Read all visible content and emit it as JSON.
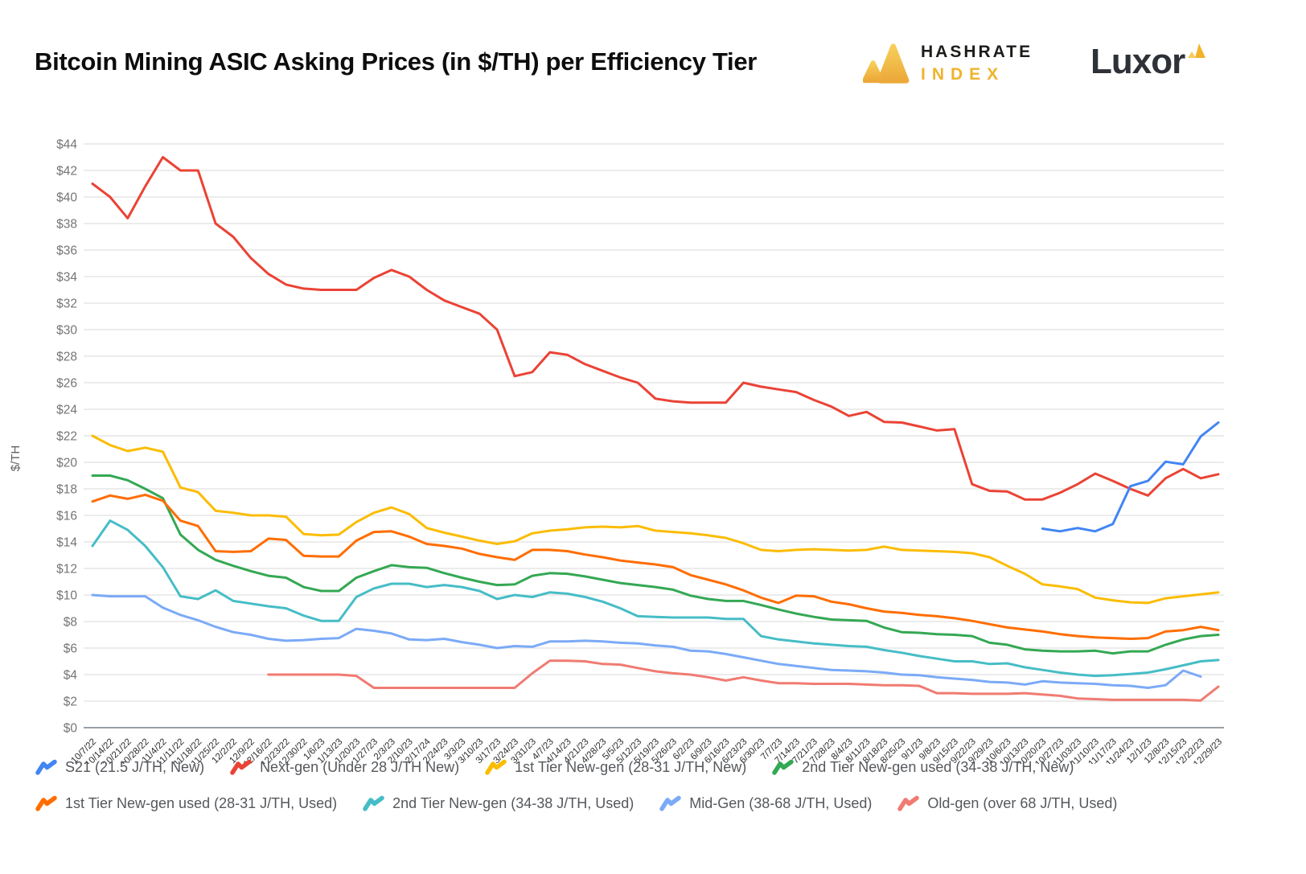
{
  "header": {
    "title": "Bitcoin Mining ASIC Asking Prices (in $/TH) per Efficiency Tier",
    "hashrate_logo": {
      "line1": "HASHRATE",
      "line2": "INDEX"
    },
    "luxor_logo": "Luxor"
  },
  "chart_data": {
    "type": "line",
    "title": "Bitcoin Mining ASIC Asking Prices (in $/TH) per Efficiency Tier",
    "xlabel": "",
    "ylabel": "$/TH",
    "ylim": [
      0,
      44
    ],
    "ytick_step": 2,
    "ytick_prefix": "$",
    "grid": true,
    "legend_position": "bottom",
    "x_label_rotation": -45,
    "x": [
      "10/7/22",
      "10/14/22",
      "10/21/22",
      "10/28/22",
      "11/4/22",
      "11/11/22",
      "11/18/22",
      "11/25/22",
      "12/2/22",
      "12/9/22",
      "12/16/22",
      "12/23/22",
      "12/30/22",
      "1/6/23",
      "1/13/23",
      "1/20/23",
      "1/27/23",
      "2/3/23",
      "2/10/23",
      "2/17/24",
      "2/24/23",
      "3/3/23",
      "3/10/23",
      "3/17/23",
      "3/24/23",
      "3/31/23",
      "4/7/23",
      "4/14/23",
      "4/21/23",
      "4/28/23",
      "5/5/23",
      "5/12/23",
      "5/19/23",
      "5/26/23",
      "6/2/23",
      "6/9/23",
      "6/16/23",
      "6/23/23",
      "6/30/23",
      "7/7/23",
      "7/14/23",
      "7/21/23",
      "7/28/23",
      "8/4/23",
      "8/11/23",
      "8/18/23",
      "8/25/23",
      "9/1/23",
      "9/8/23",
      "9/15/23",
      "9/22/23",
      "9/29/23",
      "10/6/23",
      "10/13/23",
      "10/20/23",
      "10/27/23",
      "11/03/23",
      "11/10/23",
      "11/17/23",
      "11/24/23",
      "12/1/23",
      "12/8/23",
      "12/15/23",
      "12/22/23",
      "12/29/23"
    ],
    "series": [
      {
        "name": "S21 (21.5 J/TH, New)",
        "color": "#4285F4",
        "values": [
          null,
          null,
          null,
          null,
          null,
          null,
          null,
          null,
          null,
          null,
          null,
          null,
          null,
          null,
          null,
          null,
          null,
          null,
          null,
          null,
          null,
          null,
          null,
          null,
          null,
          null,
          null,
          null,
          null,
          null,
          null,
          null,
          null,
          null,
          null,
          null,
          null,
          null,
          null,
          null,
          null,
          null,
          null,
          null,
          null,
          null,
          null,
          null,
          null,
          null,
          null,
          null,
          null,
          null,
          15.0,
          14.8,
          15.05,
          14.8,
          15.35,
          18.2,
          18.6,
          20.05,
          19.85,
          21.95,
          23.0
        ]
      },
      {
        "name": "Next-gen (Under 28 J/TH New)",
        "color": "#EA4335",
        "values": [
          41.0,
          40.0,
          38.4,
          40.8,
          43.0,
          42.0,
          42.0,
          38.0,
          37.0,
          35.4,
          34.2,
          33.4,
          33.1,
          33.0,
          33.0,
          33.0,
          33.9,
          34.5,
          34.0,
          33.0,
          32.2,
          31.7,
          31.2,
          30.0,
          26.5,
          26.8,
          28.3,
          28.1,
          27.4,
          26.9,
          26.4,
          26.0,
          24.8,
          24.6,
          24.5,
          24.5,
          24.5,
          26.0,
          25.7,
          25.5,
          25.3,
          24.7,
          24.2,
          23.5,
          23.8,
          23.05,
          23.0,
          22.7,
          22.4,
          22.5,
          18.35,
          17.85,
          17.8,
          17.2,
          17.2,
          17.7,
          18.35,
          19.15,
          18.6,
          18.0,
          17.5,
          18.8,
          19.5,
          18.8,
          19.1
        ]
      },
      {
        "name": "1st Tier New-gen (28-31 J/TH, New)",
        "color": "#FBBC04",
        "values": [
          22.0,
          21.3,
          20.85,
          21.1,
          20.8,
          18.1,
          17.75,
          16.35,
          16.2,
          16.0,
          16.0,
          15.9,
          14.6,
          14.5,
          14.55,
          15.5,
          16.2,
          16.6,
          16.1,
          15.05,
          14.7,
          14.4,
          14.1,
          13.85,
          14.05,
          14.65,
          14.85,
          14.95,
          15.1,
          15.15,
          15.1,
          15.2,
          14.85,
          14.75,
          14.65,
          14.5,
          14.3,
          13.9,
          13.4,
          13.3,
          13.4,
          13.45,
          13.4,
          13.35,
          13.4,
          13.65,
          13.4,
          13.35,
          13.3,
          13.25,
          13.15,
          12.85,
          12.2,
          11.6,
          10.8,
          10.65,
          10.45,
          9.8,
          9.6,
          9.45,
          9.4,
          9.75,
          9.9,
          10.05,
          10.2
        ]
      },
      {
        "name": "2nd Tier New-gen used (34-38 J/TH, New)",
        "color": "#34A853",
        "values": [
          19.0,
          19.0,
          18.65,
          18.0,
          17.3,
          14.55,
          13.4,
          12.65,
          12.2,
          11.8,
          11.45,
          11.3,
          10.6,
          10.3,
          10.3,
          11.3,
          11.8,
          12.25,
          12.1,
          12.05,
          11.65,
          11.3,
          11.0,
          10.75,
          10.8,
          11.45,
          11.65,
          11.6,
          11.4,
          11.15,
          10.9,
          10.75,
          10.6,
          10.4,
          9.95,
          9.7,
          9.55,
          9.55,
          9.25,
          8.9,
          8.6,
          8.35,
          8.15,
          8.1,
          8.05,
          7.55,
          7.2,
          7.15,
          7.05,
          7.0,
          6.9,
          6.4,
          6.25,
          5.9,
          5.8,
          5.75,
          5.75,
          5.8,
          5.6,
          5.75,
          5.75,
          6.25,
          6.65,
          6.9,
          7.0
        ]
      },
      {
        "name": "1st Tier New-gen used (28-31 J/TH, Used)",
        "color": "#FF6D01",
        "values": [
          17.05,
          17.5,
          17.25,
          17.55,
          17.1,
          15.6,
          15.2,
          13.3,
          13.25,
          13.3,
          14.25,
          14.15,
          12.95,
          12.9,
          12.9,
          14.1,
          14.75,
          14.8,
          14.4,
          13.85,
          13.7,
          13.5,
          13.1,
          12.85,
          12.65,
          13.4,
          13.4,
          13.3,
          13.05,
          12.85,
          12.6,
          12.45,
          12.3,
          12.1,
          11.5,
          11.15,
          10.8,
          10.35,
          9.8,
          9.4,
          9.95,
          9.9,
          9.5,
          9.3,
          9.0,
          8.75,
          8.65,
          8.5,
          8.4,
          8.25,
          8.05,
          7.8,
          7.55,
          7.4,
          7.25,
          7.05,
          6.9,
          6.8,
          6.75,
          6.7,
          6.75,
          7.25,
          7.35,
          7.6,
          7.35
        ]
      },
      {
        "name": "2nd Tier New-gen (34-38 J/TH, Used)",
        "color": "#46BDC6",
        "values": [
          13.7,
          15.6,
          14.9,
          13.7,
          12.1,
          9.9,
          9.7,
          10.35,
          9.55,
          9.35,
          9.15,
          9.0,
          8.45,
          8.05,
          8.05,
          9.85,
          10.5,
          10.85,
          10.85,
          10.6,
          10.75,
          10.6,
          10.3,
          9.7,
          10.0,
          9.85,
          10.2,
          10.1,
          9.85,
          9.5,
          9.0,
          8.4,
          8.35,
          8.3,
          8.3,
          8.3,
          8.2,
          8.2,
          6.9,
          6.65,
          6.5,
          6.35,
          6.25,
          6.15,
          6.1,
          5.85,
          5.65,
          5.4,
          5.2,
          5.0,
          5.0,
          4.8,
          4.85,
          4.55,
          4.35,
          4.15,
          4.0,
          3.9,
          3.95,
          4.05,
          4.15,
          4.4,
          4.7,
          5.0,
          5.1
        ]
      },
      {
        "name": "Mid-Gen (38-68 J/TH, Used)",
        "color": "#7BAAF7",
        "values": [
          10.0,
          9.9,
          9.9,
          9.9,
          9.05,
          8.5,
          8.1,
          7.6,
          7.2,
          7.0,
          6.7,
          6.55,
          6.6,
          6.7,
          6.75,
          7.45,
          7.3,
          7.1,
          6.65,
          6.6,
          6.7,
          6.45,
          6.25,
          6.0,
          6.15,
          6.1,
          6.5,
          6.5,
          6.55,
          6.5,
          6.4,
          6.35,
          6.2,
          6.1,
          5.8,
          5.75,
          5.55,
          5.3,
          5.05,
          4.8,
          4.65,
          4.5,
          4.35,
          4.3,
          4.25,
          4.15,
          4.0,
          3.95,
          3.8,
          3.7,
          3.6,
          3.45,
          3.4,
          3.25,
          3.5,
          3.4,
          3.35,
          3.3,
          3.2,
          3.15,
          3.0,
          3.2,
          4.3,
          3.85,
          null
        ]
      },
      {
        "name": "Old-gen (over 68 J/TH, Used)",
        "color": "#F07B72",
        "values": [
          null,
          null,
          null,
          null,
          null,
          null,
          null,
          null,
          null,
          null,
          4.0,
          4.0,
          4.0,
          4.0,
          4.0,
          3.9,
          3.0,
          3.0,
          3.0,
          3.0,
          3.0,
          3.0,
          3.0,
          3.0,
          3.0,
          4.1,
          5.05,
          5.05,
          5.0,
          4.8,
          4.75,
          4.5,
          4.25,
          4.1,
          4.0,
          3.8,
          3.55,
          3.8,
          3.55,
          3.35,
          3.35,
          3.3,
          3.3,
          3.3,
          3.25,
          3.2,
          3.2,
          3.15,
          2.6,
          2.6,
          2.55,
          2.55,
          2.55,
          2.6,
          2.5,
          2.4,
          2.2,
          2.15,
          2.1,
          2.1,
          2.1,
          2.1,
          2.1,
          2.05,
          3.1
        ]
      }
    ]
  }
}
